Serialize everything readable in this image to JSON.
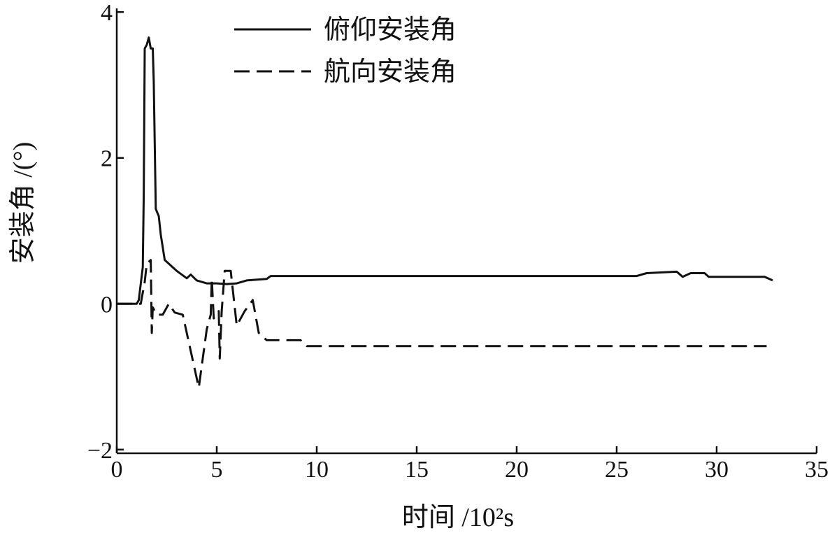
{
  "chart_data": {
    "type": "line",
    "x_label": "时间 /10²s",
    "y_label": "安装角 /(°)",
    "xlim": [
      0,
      35
    ],
    "xticks": [
      0,
      5,
      10,
      15,
      20,
      25,
      30,
      35
    ],
    "ylim": [
      -2.05,
      4.05
    ],
    "yticks": [
      {
        "value": -2,
        "label": "−2"
      },
      0,
      2,
      4
    ],
    "legend_loc": "upper center",
    "series": [
      {
        "name": "俯仰安装角",
        "color": "#111111",
        "linestyle": "solid",
        "x": [
          0,
          1,
          1.1,
          1.3,
          1.35,
          1.4,
          1.5,
          1.6,
          1.7,
          1.8,
          1.85,
          1.95,
          2.1,
          2.2,
          2.4,
          3,
          3.5,
          3.7,
          4,
          4.5,
          5,
          5.5,
          6,
          6.5,
          7.5,
          7.7,
          10,
          26,
          26.5,
          28,
          28.3,
          28.7,
          29.4,
          29.6,
          32.4,
          32.8
        ],
        "values": [
          0,
          0,
          0.05,
          0.5,
          1.5,
          3.5,
          3.55,
          3.65,
          3.5,
          3.5,
          3.05,
          1.3,
          1.2,
          0.95,
          0.6,
          0.45,
          0.35,
          0.4,
          0.32,
          0.28,
          0.28,
          0.27,
          0.28,
          0.32,
          0.34,
          0.38,
          0.38,
          0.38,
          0.42,
          0.44,
          0.37,
          0.42,
          0.42,
          0.37,
          0.37,
          0.32
        ]
      },
      {
        "name": "航向安装角",
        "color": "#111111",
        "linestyle": "dashed",
        "x": [
          0,
          1.2,
          1.4,
          1.5,
          1.7,
          1.75,
          1.8,
          2,
          2.3,
          2.6,
          2.9,
          3.3,
          4.1,
          4.5,
          4.7,
          4.75,
          4.85,
          5.1,
          5.15,
          5.25,
          5.4,
          5.7,
          6,
          6.4,
          6.8,
          7.1,
          7.5,
          9.2,
          9.5,
          32.5
        ],
        "values": [
          0,
          0,
          0.3,
          0.55,
          0.6,
          -0.4,
          -0.05,
          -0.15,
          -0.15,
          0,
          -0.12,
          -0.15,
          -1.15,
          -0.35,
          -0.15,
          0.35,
          -0.2,
          -0.1,
          -0.75,
          -0.1,
          0.45,
          0.45,
          -0.3,
          -0.1,
          0.05,
          -0.4,
          -0.5,
          -0.5,
          -0.58,
          -0.58
        ]
      }
    ]
  }
}
